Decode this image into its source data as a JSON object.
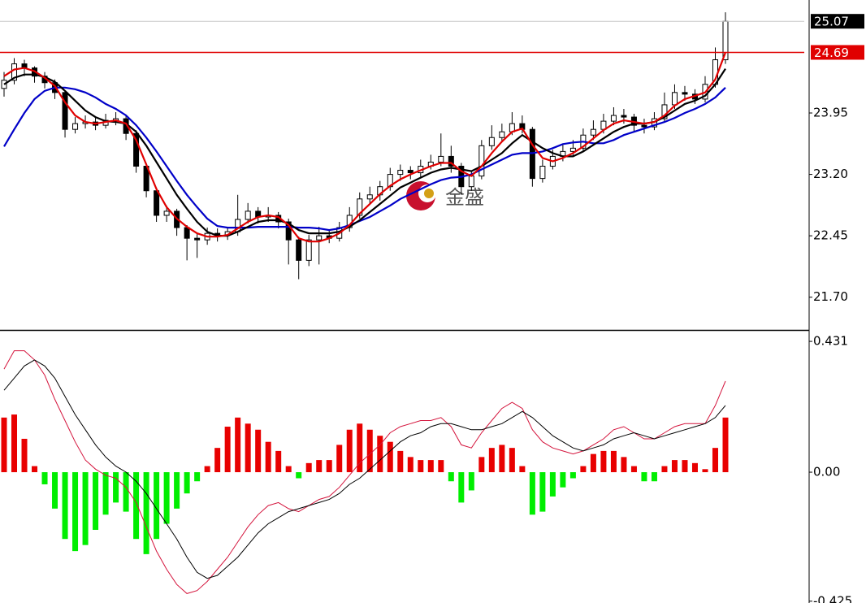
{
  "chart_data": [
    {
      "type": "candlestick",
      "open": [
        24.25,
        24.35,
        24.55,
        24.5,
        24.4,
        24.32,
        24.2,
        23.75,
        23.82,
        23.84,
        23.8,
        23.86,
        23.88,
        23.7,
        23.3,
        23.0,
        22.7,
        22.75,
        22.55,
        22.42,
        22.4,
        22.48,
        22.46,
        22.5,
        22.65,
        22.75,
        22.68,
        22.7,
        22.62,
        22.4,
        22.15,
        22.4,
        22.45,
        22.42,
        22.55,
        22.7,
        22.9,
        22.95,
        23.05,
        23.2,
        23.25,
        23.22,
        23.3,
        23.35,
        23.42,
        23.3,
        23.05,
        23.18,
        23.55,
        23.65,
        23.72,
        23.82,
        23.75,
        23.15,
        23.3,
        23.42,
        23.48,
        23.52,
        23.68,
        23.75,
        23.85,
        23.92,
        23.9,
        23.8,
        23.78,
        23.88,
        24.05,
        24.2,
        24.18,
        24.12,
        24.3,
        24.6
      ],
      "high": [
        24.45,
        24.62,
        24.6,
        24.52,
        24.45,
        24.36,
        24.22,
        23.9,
        23.92,
        23.9,
        23.94,
        23.96,
        23.92,
        23.74,
        23.34,
        23.04,
        22.82,
        22.78,
        22.58,
        22.48,
        22.55,
        22.54,
        22.56,
        22.95,
        22.85,
        22.8,
        22.8,
        22.74,
        22.66,
        22.44,
        22.46,
        22.56,
        22.52,
        22.62,
        22.8,
        22.98,
        23.05,
        23.12,
        23.28,
        23.32,
        23.3,
        23.38,
        23.44,
        23.7,
        23.55,
        23.34,
        23.25,
        23.62,
        23.8,
        23.82,
        23.96,
        23.92,
        23.78,
        23.38,
        23.5,
        23.56,
        23.62,
        23.76,
        23.86,
        23.94,
        24.02,
        24.0,
        23.94,
        23.88,
        23.96,
        24.2,
        24.3,
        24.28,
        24.24,
        24.4,
        24.75,
        25.18
      ],
      "low": [
        24.15,
        24.3,
        24.4,
        24.32,
        24.25,
        24.12,
        23.65,
        23.7,
        23.76,
        23.74,
        23.76,
        23.8,
        23.62,
        23.22,
        22.92,
        22.62,
        22.62,
        22.45,
        22.15,
        22.18,
        22.34,
        22.38,
        22.4,
        22.45,
        22.6,
        22.6,
        22.62,
        22.54,
        22.1,
        21.92,
        22.08,
        22.1,
        22.36,
        22.38,
        22.5,
        22.66,
        22.84,
        22.88,
        23.0,
        23.12,
        23.14,
        23.16,
        23.26,
        23.3,
        23.22,
        22.95,
        23.0,
        23.14,
        23.5,
        23.6,
        23.68,
        23.7,
        23.05,
        23.1,
        23.26,
        23.36,
        23.42,
        23.48,
        23.62,
        23.7,
        23.8,
        23.82,
        23.72,
        23.7,
        23.74,
        23.84,
        24.0,
        24.1,
        24.06,
        24.08,
        24.26,
        24.55
      ],
      "close": [
        24.35,
        24.55,
        24.5,
        24.4,
        24.32,
        24.2,
        23.75,
        23.82,
        23.84,
        23.8,
        23.86,
        23.88,
        23.7,
        23.3,
        23.0,
        22.7,
        22.75,
        22.55,
        22.42,
        22.4,
        22.48,
        22.46,
        22.5,
        22.65,
        22.75,
        22.68,
        22.7,
        22.62,
        22.4,
        22.15,
        22.4,
        22.45,
        22.42,
        22.55,
        22.7,
        22.9,
        22.95,
        23.05,
        23.2,
        23.25,
        23.22,
        23.3,
        23.35,
        23.42,
        23.3,
        23.05,
        23.18,
        23.55,
        23.65,
        23.72,
        23.82,
        23.75,
        23.15,
        23.3,
        23.42,
        23.48,
        23.52,
        23.68,
        23.75,
        23.85,
        23.92,
        23.9,
        23.8,
        23.78,
        23.88,
        24.05,
        24.2,
        24.18,
        24.12,
        24.3,
        24.6,
        25.07
      ],
      "candle_color": "#000000",
      "series": [
        {
          "color": "#0000c8",
          "values": [
            23.54,
            23.75,
            23.95,
            24.12,
            24.22,
            24.26,
            24.26,
            24.24,
            24.2,
            24.14,
            24.06,
            24.0,
            23.92,
            23.8,
            23.65,
            23.48,
            23.3,
            23.12,
            22.95,
            22.8,
            22.66,
            22.57,
            22.55,
            22.55,
            22.55,
            22.56,
            22.56,
            22.56,
            22.56,
            22.55,
            22.55,
            22.54,
            22.52,
            22.54,
            22.58,
            22.63,
            22.68,
            22.75,
            22.82,
            22.9,
            22.96,
            23.02,
            23.08,
            23.13,
            23.16,
            23.17,
            23.2,
            23.26,
            23.32,
            23.38,
            23.44,
            23.46,
            23.46,
            23.48,
            23.52,
            23.57,
            23.59,
            23.6,
            23.58,
            23.58,
            23.62,
            23.68,
            23.72,
            23.76,
            23.8,
            23.84,
            23.89,
            23.95,
            24.0,
            24.06,
            24.14,
            24.26
          ]
        },
        {
          "color": "#000000",
          "values": [
            24.3,
            24.38,
            24.42,
            24.42,
            24.39,
            24.33,
            24.22,
            24.1,
            23.98,
            23.9,
            23.85,
            23.84,
            23.82,
            23.72,
            23.55,
            23.35,
            23.15,
            22.95,
            22.78,
            22.62,
            22.5,
            22.45,
            22.45,
            22.5,
            22.56,
            22.62,
            22.64,
            22.64,
            22.6,
            22.52,
            22.48,
            22.48,
            22.48,
            22.5,
            22.56,
            22.64,
            22.74,
            22.84,
            22.94,
            23.04,
            23.1,
            23.16,
            23.22,
            23.26,
            23.28,
            23.26,
            23.24,
            23.3,
            23.38,
            23.46,
            23.58,
            23.68,
            23.6,
            23.52,
            23.46,
            23.42,
            23.42,
            23.48,
            23.56,
            23.64,
            23.72,
            23.78,
            23.82,
            23.82,
            23.84,
            23.9,
            23.98,
            24.06,
            24.1,
            24.16,
            24.3,
            24.49
          ]
        },
        {
          "color": "#e00000",
          "values": [
            24.4,
            24.48,
            24.5,
            24.46,
            24.38,
            24.28,
            24.08,
            23.92,
            23.84,
            23.82,
            23.84,
            23.86,
            23.82,
            23.62,
            23.32,
            23.02,
            22.8,
            22.66,
            22.56,
            22.48,
            22.44,
            22.44,
            22.46,
            22.54,
            22.62,
            22.68,
            22.7,
            22.68,
            22.58,
            22.42,
            22.38,
            22.38,
            22.42,
            22.48,
            22.58,
            22.72,
            22.84,
            22.96,
            23.06,
            23.14,
            23.2,
            23.25,
            23.3,
            23.34,
            23.34,
            23.24,
            23.18,
            23.3,
            23.46,
            23.6,
            23.72,
            23.76,
            23.56,
            23.4,
            23.36,
            23.4,
            23.46,
            23.54,
            23.64,
            23.74,
            23.82,
            23.86,
            23.84,
            23.82,
            23.84,
            23.92,
            24.04,
            24.12,
            24.16,
            24.2,
            24.36,
            24.69
          ]
        }
      ],
      "price_lines": [
        {
          "value": 25.07,
          "color": "#000000",
          "line_color": "#c8c8c8"
        },
        {
          "value": 24.69,
          "color": "#e00000",
          "line_color": "#e00000"
        }
      ],
      "watermark": "金盛",
      "ylim": [
        21.3,
        25.33
      ],
      "yticks": [
        {
          "value": 21.7,
          "label": "21.70"
        },
        22.45,
        {
          "value": 23.2,
          "label": "23.20"
        },
        23.95
      ]
    },
    {
      "type": "macd",
      "values": [
        0.18,
        0.19,
        0.11,
        0.02,
        -0.04,
        -0.12,
        -0.22,
        -0.26,
        -0.24,
        -0.19,
        -0.14,
        -0.1,
        -0.13,
        -0.22,
        -0.27,
        -0.22,
        -0.17,
        -0.12,
        -0.07,
        -0.03,
        0.02,
        0.08,
        0.15,
        0.18,
        0.16,
        0.14,
        0.1,
        0.07,
        0.02,
        -0.02,
        0.03,
        0.04,
        0.04,
        0.09,
        0.14,
        0.16,
        0.14,
        0.12,
        0.1,
        0.07,
        0.05,
        0.04,
        0.04,
        0.04,
        -0.03,
        -0.1,
        -0.06,
        0.05,
        0.08,
        0.09,
        0.08,
        0.02,
        -0.14,
        -0.13,
        -0.08,
        -0.05,
        -0.02,
        0.02,
        0.06,
        0.07,
        0.07,
        0.05,
        0.02,
        -0.03,
        -0.03,
        0.02,
        0.04,
        0.04,
        0.03,
        0.01,
        0.08,
        0.18
      ],
      "pos_color": "#e80000",
      "neg_color": "#00ee00",
      "series": [
        {
          "color": "#d4143c",
          "values": [
            0.34,
            0.4,
            0.4,
            0.37,
            0.32,
            0.24,
            0.17,
            0.1,
            0.04,
            0.01,
            -0.01,
            -0.02,
            -0.05,
            -0.1,
            -0.18,
            -0.26,
            -0.32,
            -0.37,
            -0.4,
            -0.39,
            -0.36,
            -0.32,
            -0.28,
            -0.23,
            -0.18,
            -0.14,
            -0.11,
            -0.1,
            -0.12,
            -0.13,
            -0.11,
            -0.09,
            -0.08,
            -0.05,
            -0.01,
            0.03,
            0.06,
            0.09,
            0.13,
            0.15,
            0.16,
            0.17,
            0.17,
            0.18,
            0.15,
            0.09,
            0.08,
            0.13,
            0.17,
            0.21,
            0.23,
            0.21,
            0.14,
            0.1,
            0.08,
            0.07,
            0.06,
            0.07,
            0.09,
            0.11,
            0.14,
            0.15,
            0.13,
            0.11,
            0.11,
            0.13,
            0.15,
            0.16,
            0.16,
            0.16,
            0.22,
            0.3
          ]
        },
        {
          "color": "#000000",
          "values": [
            0.27,
            0.31,
            0.35,
            0.37,
            0.35,
            0.31,
            0.25,
            0.19,
            0.14,
            0.09,
            0.05,
            0.02,
            0.0,
            -0.03,
            -0.07,
            -0.12,
            -0.17,
            -0.22,
            -0.28,
            -0.33,
            -0.35,
            -0.34,
            -0.31,
            -0.28,
            -0.24,
            -0.2,
            -0.17,
            -0.15,
            -0.13,
            -0.12,
            -0.11,
            -0.1,
            -0.09,
            -0.07,
            -0.04,
            -0.02,
            0.01,
            0.04,
            0.07,
            0.1,
            0.12,
            0.13,
            0.15,
            0.16,
            0.16,
            0.15,
            0.14,
            0.14,
            0.15,
            0.16,
            0.18,
            0.2,
            0.18,
            0.15,
            0.12,
            0.1,
            0.08,
            0.07,
            0.08,
            0.09,
            0.11,
            0.12,
            0.13,
            0.12,
            0.11,
            0.12,
            0.13,
            0.14,
            0.15,
            0.16,
            0.18,
            0.22
          ]
        }
      ],
      "ylim": [
        -0.431,
        0.466
      ],
      "yticks": [
        0.431,
        {
          "value": 0,
          "label": "0.00"
        },
        -0.425
      ]
    }
  ]
}
